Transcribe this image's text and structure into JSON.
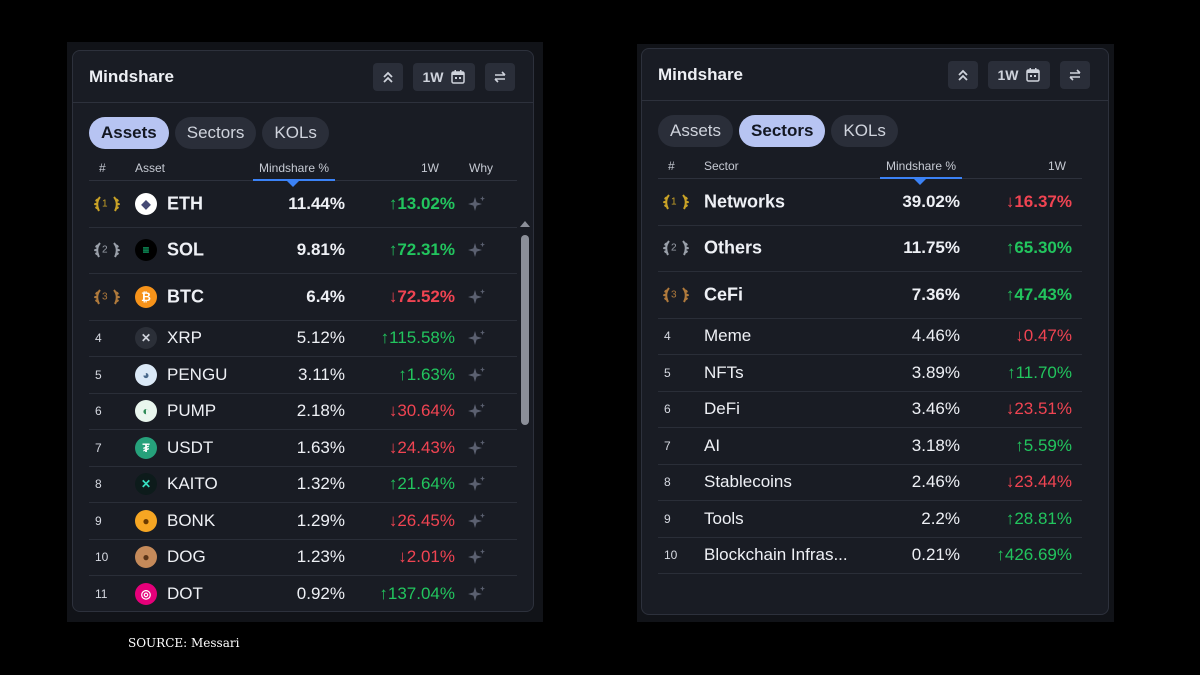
{
  "left_panel": {
    "title": "Mindshare",
    "period_label": "1W",
    "tabs": [
      {
        "label": "Assets",
        "active": true
      },
      {
        "label": "Sectors",
        "active": false
      },
      {
        "label": "KOLs",
        "active": false
      }
    ],
    "columns": {
      "rank": "#",
      "name": "Asset",
      "mindshare": "Mindshare %",
      "change": "1W",
      "why": "Why"
    },
    "rows": [
      {
        "rank": "1",
        "name": "ETH",
        "mindshare": "11.44%",
        "change": "↑13.02%",
        "dir": "up",
        "icon": "eth-icon"
      },
      {
        "rank": "2",
        "name": "SOL",
        "mindshare": "9.81%",
        "change": "↑72.31%",
        "dir": "up",
        "icon": "sol-icon"
      },
      {
        "rank": "3",
        "name": "BTC",
        "mindshare": "6.4%",
        "change": "↓72.52%",
        "dir": "down",
        "icon": "btc-icon"
      },
      {
        "rank": "4",
        "name": "XRP",
        "mindshare": "5.12%",
        "change": "↑115.58%",
        "dir": "up",
        "icon": "xrp-icon"
      },
      {
        "rank": "5",
        "name": "PENGU",
        "mindshare": "3.11%",
        "change": "↑1.63%",
        "dir": "up",
        "icon": "pengu-icon"
      },
      {
        "rank": "6",
        "name": "PUMP",
        "mindshare": "2.18%",
        "change": "↓30.64%",
        "dir": "down",
        "icon": "pump-icon"
      },
      {
        "rank": "7",
        "name": "USDT",
        "mindshare": "1.63%",
        "change": "↓24.43%",
        "dir": "down",
        "icon": "usdt-icon"
      },
      {
        "rank": "8",
        "name": "KAITO",
        "mindshare": "1.32%",
        "change": "↑21.64%",
        "dir": "up",
        "icon": "kaito-icon"
      },
      {
        "rank": "9",
        "name": "BONK",
        "mindshare": "1.29%",
        "change": "↓26.45%",
        "dir": "down",
        "icon": "bonk-icon"
      },
      {
        "rank": "10",
        "name": "DOG",
        "mindshare": "1.23%",
        "change": "↓2.01%",
        "dir": "down",
        "icon": "dog-icon"
      },
      {
        "rank": "11",
        "name": "DOT",
        "mindshare": "0.92%",
        "change": "↑137.04%",
        "dir": "up",
        "icon": "dot-icon"
      }
    ]
  },
  "right_panel": {
    "title": "Mindshare",
    "period_label": "1W",
    "tabs": [
      {
        "label": "Assets",
        "active": false
      },
      {
        "label": "Sectors",
        "active": true
      },
      {
        "label": "KOLs",
        "active": false
      }
    ],
    "columns": {
      "rank": "#",
      "name": "Sector",
      "mindshare": "Mindshare %",
      "change": "1W"
    },
    "rows": [
      {
        "rank": "1",
        "name": "Networks",
        "mindshare": "39.02%",
        "change": "↓16.37%",
        "dir": "down"
      },
      {
        "rank": "2",
        "name": "Others",
        "mindshare": "11.75%",
        "change": "↑65.30%",
        "dir": "up"
      },
      {
        "rank": "3",
        "name": "CeFi",
        "mindshare": "7.36%",
        "change": "↑47.43%",
        "dir": "up"
      },
      {
        "rank": "4",
        "name": "Meme",
        "mindshare": "4.46%",
        "change": "↓0.47%",
        "dir": "down"
      },
      {
        "rank": "5",
        "name": "NFTs",
        "mindshare": "3.89%",
        "change": "↑11.70%",
        "dir": "up"
      },
      {
        "rank": "6",
        "name": "DeFi",
        "mindshare": "3.46%",
        "change": "↓23.51%",
        "dir": "down"
      },
      {
        "rank": "7",
        "name": "AI",
        "mindshare": "3.18%",
        "change": "↑5.59%",
        "dir": "up"
      },
      {
        "rank": "8",
        "name": "Stablecoins",
        "mindshare": "2.46%",
        "change": "↓23.44%",
        "dir": "down"
      },
      {
        "rank": "9",
        "name": "Tools",
        "mindshare": "2.2%",
        "change": "↑28.81%",
        "dir": "up"
      },
      {
        "rank": "10",
        "name": "Blockchain Infras...",
        "mindshare": "0.21%",
        "change": "↑426.69%",
        "dir": "up"
      }
    ]
  },
  "source": "SOURCE: Messari",
  "colors": {
    "up": "#22c55e",
    "down": "#f04452",
    "accent": "#b7c4f2",
    "sort": "#3b82f6"
  }
}
